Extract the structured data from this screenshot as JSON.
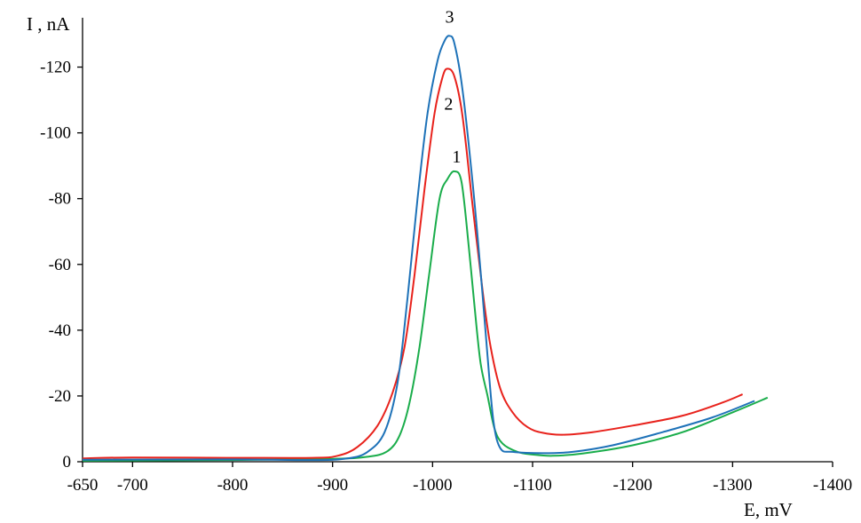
{
  "chart_data": {
    "type": "line",
    "title": "",
    "xlabel": "E, mV",
    "ylabel": "I , nA",
    "xlim": [
      -650,
      -1400
    ],
    "ylim": [
      0,
      -135
    ],
    "grid": false,
    "legend": "none",
    "x_ticks": [
      {
        "value": -650,
        "label": "-650"
      },
      {
        "value": -700,
        "label": "-700"
      },
      {
        "value": -800,
        "label": "-800"
      },
      {
        "value": -900,
        "label": "-900"
      },
      {
        "value": -1000,
        "label": "-1000"
      },
      {
        "value": -1100,
        "label": "-1100"
      },
      {
        "value": -1200,
        "label": "-1200"
      },
      {
        "value": -1300,
        "label": "-1300"
      },
      {
        "value": -1400,
        "label": "-1400"
      }
    ],
    "y_ticks": [
      {
        "value": 0,
        "label": "0"
      },
      {
        "value": -20,
        "label": "-20"
      },
      {
        "value": -40,
        "label": "-40"
      },
      {
        "value": -60,
        "label": "-60"
      },
      {
        "value": -80,
        "label": "-80"
      },
      {
        "value": -100,
        "label": "-100"
      },
      {
        "value": -120,
        "label": "-120"
      }
    ],
    "series": [
      {
        "label": "1",
        "label_at": [
          -1024,
          -91
        ],
        "color": "#1aad4b",
        "points": [
          [
            -650,
            -0.3
          ],
          [
            -800,
            -0.5
          ],
          [
            -900,
            -0.9
          ],
          [
            -935,
            -1.5
          ],
          [
            -955,
            -3.2
          ],
          [
            -967,
            -8
          ],
          [
            -977,
            -18
          ],
          [
            -987,
            -35
          ],
          [
            -997,
            -58
          ],
          [
            -1007,
            -80
          ],
          [
            -1015,
            -86
          ],
          [
            -1022,
            -88.3
          ],
          [
            -1029,
            -85
          ],
          [
            -1036,
            -66
          ],
          [
            -1042,
            -47
          ],
          [
            -1048,
            -30
          ],
          [
            -1055,
            -20
          ],
          [
            -1062,
            -10
          ],
          [
            -1070,
            -5.5
          ],
          [
            -1085,
            -3
          ],
          [
            -1100,
            -2.2
          ],
          [
            -1120,
            -1.8
          ],
          [
            -1150,
            -2.5
          ],
          [
            -1200,
            -5
          ],
          [
            -1250,
            -9
          ],
          [
            -1300,
            -15
          ],
          [
            -1335,
            -19.5
          ]
        ]
      },
      {
        "label": "2",
        "label_at": [
          -1016,
          -107
        ],
        "color": "#e8221c",
        "points": [
          [
            -650,
            -1
          ],
          [
            -700,
            -1.3
          ],
          [
            -800,
            -1.2
          ],
          [
            -880,
            -1.2
          ],
          [
            -905,
            -1.8
          ],
          [
            -925,
            -4.5
          ],
          [
            -945,
            -11
          ],
          [
            -960,
            -21
          ],
          [
            -972,
            -35
          ],
          [
            -982,
            -57
          ],
          [
            -992,
            -83
          ],
          [
            -1002,
            -106
          ],
          [
            -1010,
            -117
          ],
          [
            -1015,
            -119.5
          ],
          [
            -1022,
            -117
          ],
          [
            -1030,
            -105
          ],
          [
            -1040,
            -78
          ],
          [
            -1050,
            -52
          ],
          [
            -1058,
            -35
          ],
          [
            -1068,
            -22
          ],
          [
            -1080,
            -15
          ],
          [
            -1095,
            -10.5
          ],
          [
            -1110,
            -8.8
          ],
          [
            -1130,
            -8.2
          ],
          [
            -1160,
            -9
          ],
          [
            -1200,
            -11
          ],
          [
            -1250,
            -14
          ],
          [
            -1290,
            -18
          ],
          [
            -1310,
            -20.5
          ]
        ]
      },
      {
        "label": "3",
        "label_at": [
          -1017,
          -133.5
        ],
        "color": "#1e72b8",
        "points": [
          [
            -650,
            -0.6
          ],
          [
            -800,
            -0.7
          ],
          [
            -880,
            -0.5
          ],
          [
            -915,
            -1
          ],
          [
            -935,
            -3
          ],
          [
            -952,
            -9
          ],
          [
            -965,
            -24
          ],
          [
            -975,
            -50
          ],
          [
            -985,
            -80
          ],
          [
            -995,
            -106
          ],
          [
            -1005,
            -122
          ],
          [
            -1012,
            -128
          ],
          [
            -1017,
            -129.5
          ],
          [
            -1022,
            -127
          ],
          [
            -1030,
            -113
          ],
          [
            -1040,
            -85
          ],
          [
            -1048,
            -58
          ],
          [
            -1055,
            -32
          ],
          [
            -1061,
            -12
          ],
          [
            -1068,
            -4
          ],
          [
            -1080,
            -3
          ],
          [
            -1110,
            -2.6
          ],
          [
            -1140,
            -3
          ],
          [
            -1180,
            -5
          ],
          [
            -1230,
            -9
          ],
          [
            -1280,
            -13.5
          ],
          [
            -1322,
            -18.5
          ]
        ]
      }
    ]
  }
}
